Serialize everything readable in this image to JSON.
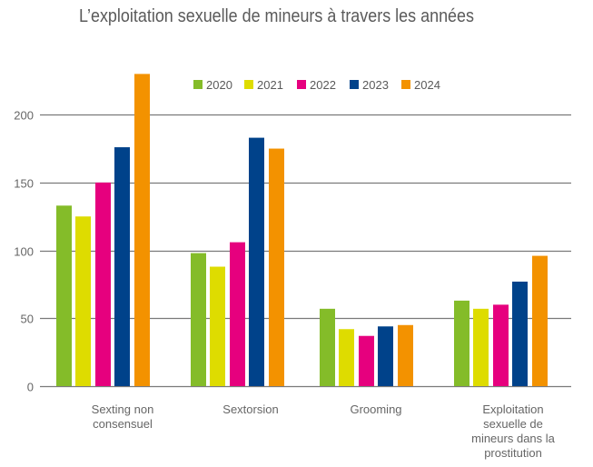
{
  "chart_data": {
    "type": "bar",
    "title": "L’exploitation sexuelle de mineurs à travers les années",
    "xlabel": "",
    "ylabel": "",
    "ylim": [
      0,
      250
    ],
    "yticks": [
      0,
      50,
      100,
      150,
      200
    ],
    "ytick_labels": [
      "0",
      "50",
      "100",
      "150",
      "200"
    ],
    "grid": true,
    "legend_position": "top-center",
    "categories": [
      [
        "Sexting non",
        "consensuel"
      ],
      [
        "Sextorsion"
      ],
      [
        "Grooming"
      ],
      [
        "Exploitation",
        "sexuelle de",
        "mineurs dans la",
        "prostitution"
      ]
    ],
    "series": [
      {
        "name": "2020",
        "color": "#84BC29",
        "values": [
          133,
          98,
          57,
          63
        ]
      },
      {
        "name": "2021",
        "color": "#DEDC00",
        "values": [
          125,
          88,
          42,
          57
        ]
      },
      {
        "name": "2022",
        "color": "#E6007E",
        "values": [
          150,
          106,
          37,
          60
        ]
      },
      {
        "name": "2023",
        "color": "#00428A",
        "values": [
          176,
          183,
          44,
          77
        ]
      },
      {
        "name": "2024",
        "color": "#F39200",
        "values": [
          230,
          175,
          45,
          96
        ]
      }
    ]
  }
}
